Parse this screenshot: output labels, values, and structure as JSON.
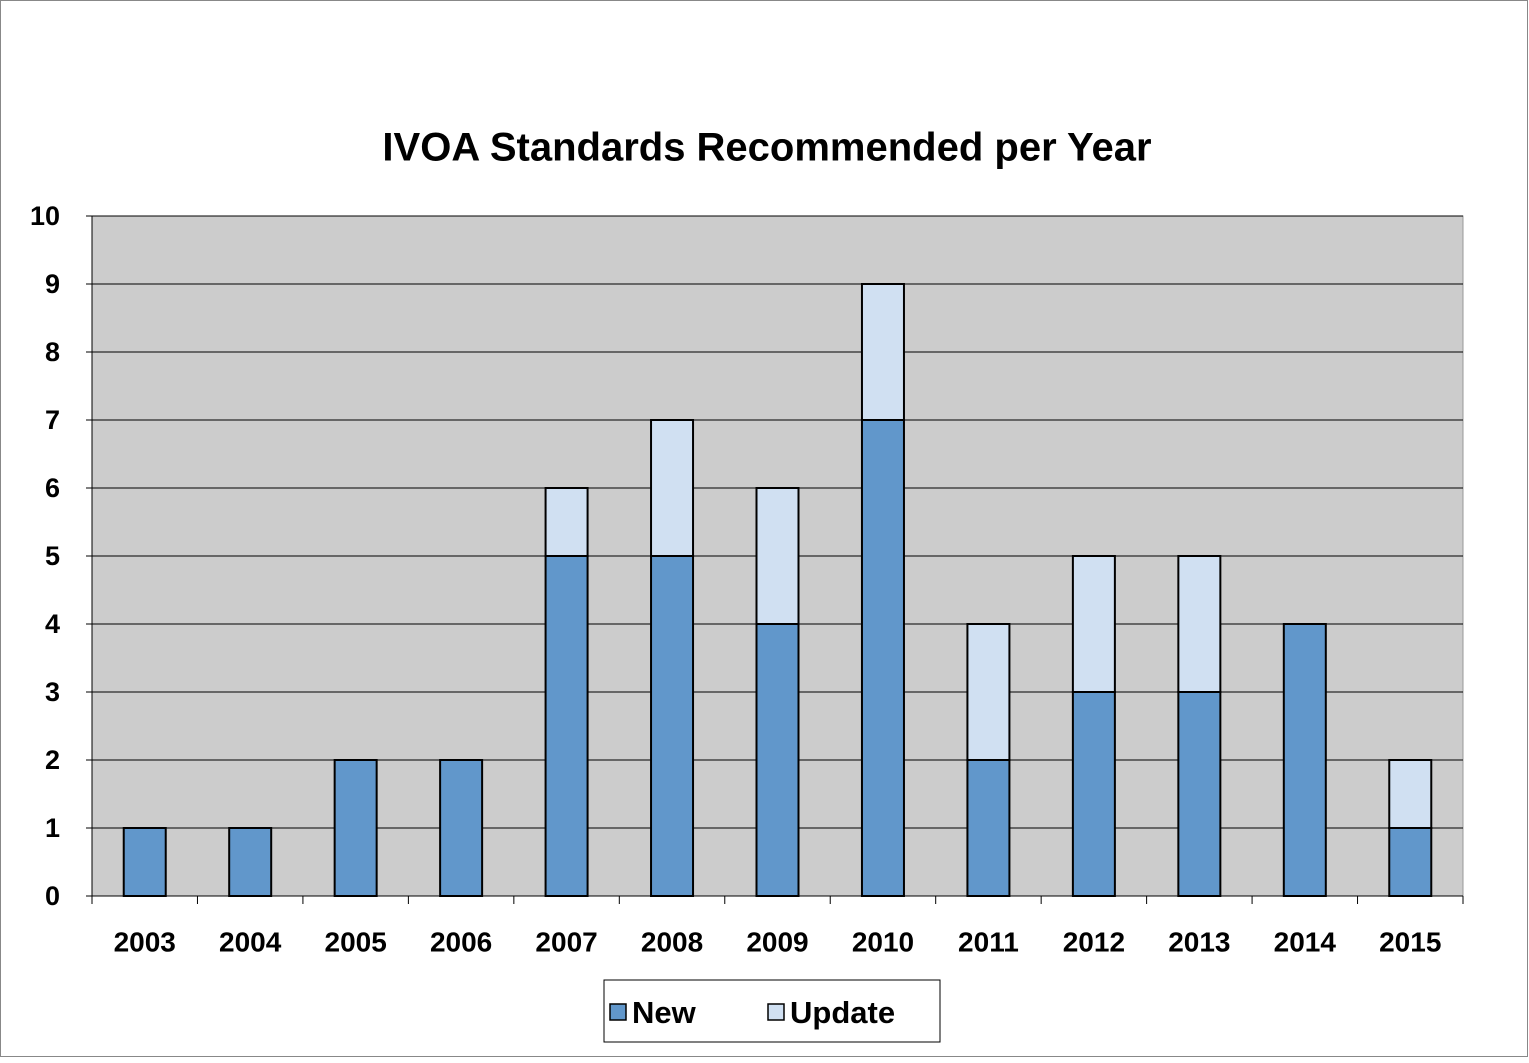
{
  "chart_data": {
    "type": "bar",
    "stacked": true,
    "title": "IVOA Standards Recommended per Year",
    "categories": [
      "2003",
      "2004",
      "2005",
      "2006",
      "2007",
      "2008",
      "2009",
      "2010",
      "2011",
      "2012",
      "2013",
      "2014",
      "2015"
    ],
    "series": [
      {
        "name": "New",
        "color": "#6197cb",
        "values": [
          1,
          1,
          2,
          2,
          5,
          5,
          4,
          7,
          2,
          3,
          3,
          4,
          1
        ]
      },
      {
        "name": "Update",
        "color": "#d0e0f2",
        "values": [
          0,
          0,
          0,
          0,
          1,
          2,
          2,
          2,
          2,
          2,
          2,
          0,
          1
        ]
      }
    ],
    "ylim": [
      0,
      10
    ],
    "yticks": [
      0,
      1,
      2,
      3,
      4,
      5,
      6,
      7,
      8,
      9,
      10
    ],
    "grid": true,
    "legend": "bottom"
  }
}
